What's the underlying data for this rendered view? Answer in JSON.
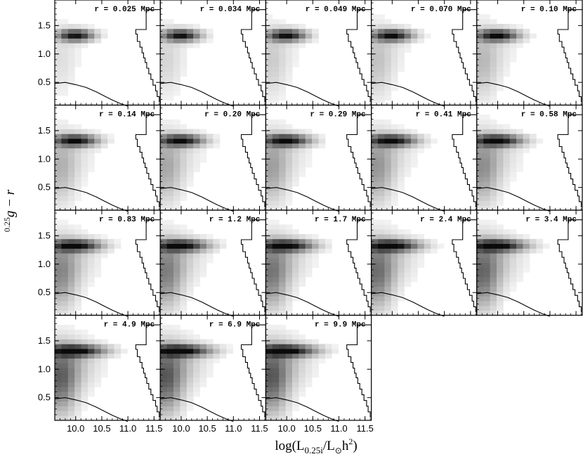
{
  "figure": {
    "ylabel_sup": "0.25",
    "ylabel_main": "g − r",
    "xlabel_main": "log(L",
    "xlabel_sub": "0.25i",
    "xlabel_mid": "/L",
    "xlabel_sun": "⊙",
    "xlabel_h": "h",
    "xlabel_sup": "2",
    "xlabel_close": ")"
  },
  "chart_data": {
    "type": "heatmap",
    "layout": "panel grid, 5 columns, 4 rows (last row 3 panels)",
    "xlim": [
      9.6,
      11.62
    ],
    "ylim": [
      0.1,
      1.95
    ],
    "x_ticks": [
      "10.0",
      "10.5",
      "11.0",
      "11.5"
    ],
    "x_tick_values": [
      10.0,
      10.5,
      11.0,
      11.5
    ],
    "y_ticks": [
      "0.5",
      "1.0",
      "1.5"
    ],
    "y_tick_values": [
      0.5,
      1.0,
      1.5
    ],
    "colormap": "greyscale (white = low density, black = high density)",
    "panels": [
      {
        "label": "r = 0.025 Mpc",
        "r": 0.025
      },
      {
        "label": "r = 0.034 Mpc",
        "r": 0.034
      },
      {
        "label": "r = 0.049 Mpc",
        "r": 0.049
      },
      {
        "label": "r = 0.070 Mpc",
        "r": 0.07
      },
      {
        "label": "r = 0.10 Mpc",
        "r": 0.1
      },
      {
        "label": "r = 0.14 Mpc",
        "r": 0.14
      },
      {
        "label": "r = 0.20 Mpc",
        "r": 0.2
      },
      {
        "label": "r = 0.29 Mpc",
        "r": 0.29
      },
      {
        "label": "r = 0.41 Mpc",
        "r": 0.41
      },
      {
        "label": "r = 0.58 Mpc",
        "r": 0.58
      },
      {
        "label": "r = 0.83 Mpc",
        "r": 0.83
      },
      {
        "label": "r = 1.2 Mpc",
        "r": 1.2
      },
      {
        "label": "r = 1.7 Mpc",
        "r": 1.7
      },
      {
        "label": "r = 2.4 Mpc",
        "r": 2.4
      },
      {
        "label": "r = 3.4 Mpc",
        "r": 3.4
      },
      {
        "label": "r = 4.9 Mpc",
        "r": 4.9
      },
      {
        "label": "r = 6.9 Mpc",
        "r": 6.9
      },
      {
        "label": "r = 9.9 Mpc",
        "r": 9.9
      }
    ],
    "lower_curve": [
      [
        9.6,
        0.48
      ],
      [
        9.8,
        0.5
      ],
      [
        10.0,
        0.46
      ],
      [
        10.2,
        0.41
      ],
      [
        10.4,
        0.33
      ],
      [
        10.55,
        0.26
      ],
      [
        10.7,
        0.19
      ],
      [
        10.85,
        0.13
      ],
      [
        11.0,
        0.08
      ]
    ],
    "right_histogram": [
      [
        11.62,
        1.78
      ],
      [
        11.35,
        1.78
      ],
      [
        11.35,
        1.43
      ],
      [
        11.15,
        1.43
      ],
      [
        11.15,
        1.35
      ],
      [
        11.18,
        1.22
      ],
      [
        11.23,
        1.12
      ],
      [
        11.27,
        1.02
      ],
      [
        11.3,
        0.93
      ],
      [
        11.33,
        0.85
      ],
      [
        11.36,
        0.75
      ],
      [
        11.4,
        0.65
      ],
      [
        11.44,
        0.55
      ],
      [
        11.48,
        0.45
      ],
      [
        11.53,
        0.35
      ],
      [
        11.56,
        0.25
      ],
      [
        11.6,
        0.15
      ]
    ],
    "density_model": {
      "red_peak": {
        "x": 10.0,
        "y": 1.33
      },
      "blue_cloud": {
        "x": 9.7,
        "y": 0.75
      }
    }
  }
}
